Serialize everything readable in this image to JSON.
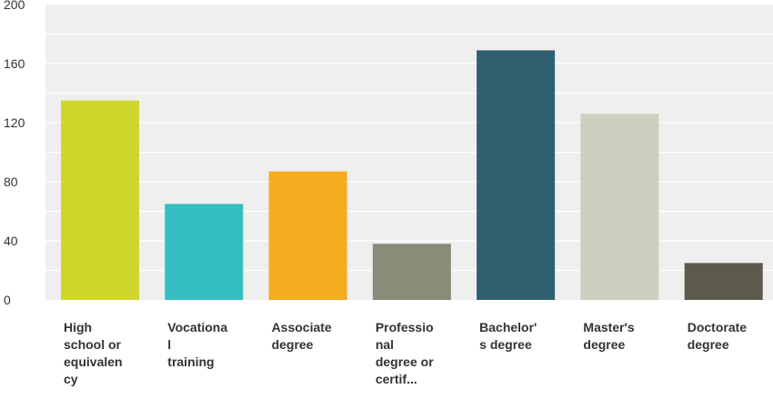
{
  "chart_data": {
    "type": "bar",
    "categories": [
      "High school or equivalency",
      "Vocational training",
      "Associate degree",
      "Professional degree or certif...",
      "Bachelor's degree",
      "Master's degree",
      "Doctorate degree"
    ],
    "category_lines": [
      [
        "High",
        "school or",
        "equivalen",
        "cy"
      ],
      [
        "Vocationa",
        "l",
        "training"
      ],
      [
        "Associate",
        "degree"
      ],
      [
        "Professio",
        "nal",
        "degree or",
        "certif..."
      ],
      [
        "Bachelor'",
        "s degree"
      ],
      [
        "Master's",
        "degree"
      ],
      [
        "Doctorate",
        "degree"
      ]
    ],
    "values": [
      135,
      65,
      87,
      38,
      169,
      126,
      25
    ],
    "colors": [
      "#d0d62c",
      "#33bfc1",
      "#f5ad1f",
      "#8b8b7a",
      "#2e6070",
      "#cfcfbf",
      "#5c5a4a"
    ],
    "ylim": [
      0,
      200
    ],
    "yticks": [
      0,
      40,
      80,
      120,
      160,
      200
    ],
    "grid": true,
    "title": "",
    "xlabel": "",
    "ylabel": "",
    "plot_background": "#efefef",
    "gridline_color": "#ffffff"
  }
}
